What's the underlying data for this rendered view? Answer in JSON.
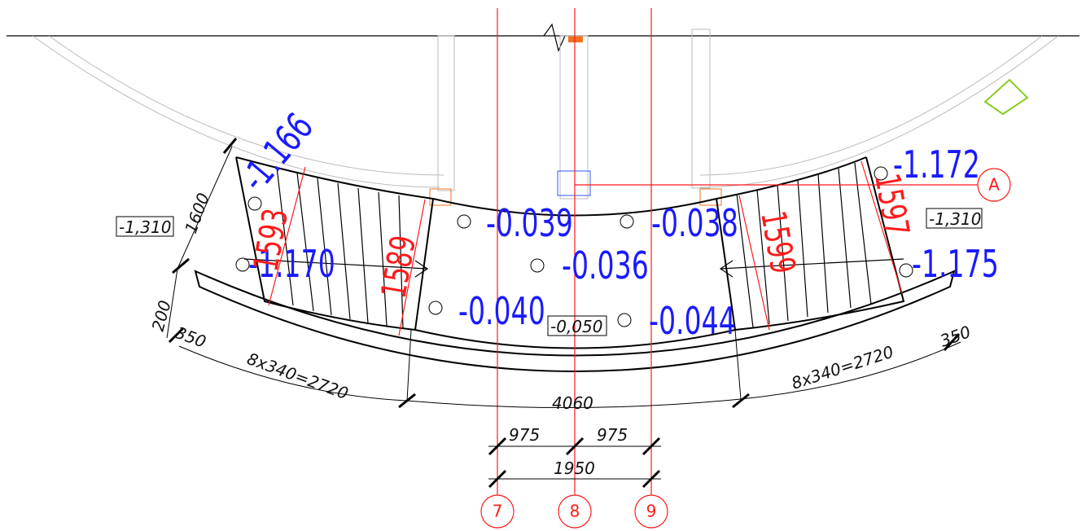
{
  "elevations": {
    "stair_left_top": "-1.166",
    "stair_left_bottom": "-1.170",
    "stair_right_top": "-1.172",
    "stair_right_bottom": "-1.175",
    "landing_left_top": "-0.039",
    "landing_right_top": "-0.038",
    "landing_center": "-0.036",
    "landing_left_bottom": "-0.040",
    "landing_right_bottom": "-0.044",
    "level_left": "-1,310",
    "level_right": "-1,310",
    "level_center": "-0,050"
  },
  "red_dimensions": [
    "1593",
    "1589",
    "1599",
    "1597"
  ],
  "dimensions": {
    "width": "1600",
    "band": "200",
    "left_end": "350",
    "right_end": "350",
    "left_run": "8x340=2720",
    "right_run": "8x340=2720",
    "total": "4060",
    "half_left": "975",
    "half_right": "975",
    "axes_span": "1950"
  },
  "axes": [
    "7",
    "8",
    "9",
    "A"
  ]
}
